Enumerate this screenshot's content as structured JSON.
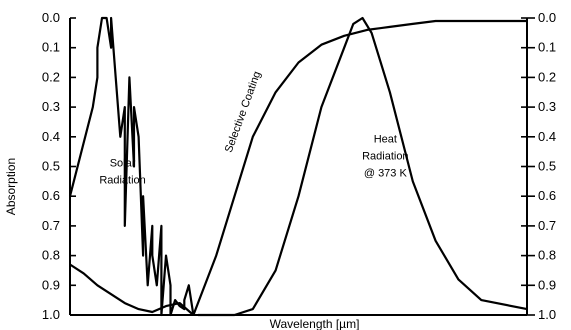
{
  "chart_data": {
    "type": "line",
    "title": "",
    "xlabel": "Wavelength [µm]",
    "ylabel": "Absorption",
    "ylim": [
      1.0,
      0.0
    ],
    "y_inverted": true,
    "y_ticks": [
      "0.0",
      "0.1",
      "0.2",
      "0.3",
      "0.4",
      "0.5",
      "0.6",
      "0.7",
      "0.8",
      "0.9",
      "1.0"
    ],
    "y_ticks_right": [
      "0.0",
      "0.1",
      "0.2",
      "0.3",
      "0.4",
      "0.5",
      "0.6",
      "0.7",
      "0.8",
      "0.9",
      "1.0"
    ],
    "xlim": [
      0,
      1
    ],
    "x_tick_labels_shown": false,
    "grid": false,
    "line_color": "#000000",
    "annotations": {
      "solar": [
        "Solar",
        "Radiation"
      ],
      "coating": "Selective Coating",
      "heat": [
        "Heat",
        "Radiation",
        "@ 373 K"
      ]
    },
    "series": [
      {
        "x": [
          0.0,
          0.05,
          0.06,
          0.06,
          0.07,
          0.08,
          0.09,
          0.09,
          0.1,
          0.11,
          0.12,
          0.12,
          0.13,
          0.14,
          0.14,
          0.15,
          0.16,
          0.16,
          0.17,
          0.18,
          0.18,
          0.19,
          0.2,
          0.2,
          0.21,
          0.22,
          0.22,
          0.23,
          0.24,
          0.25,
          0.25,
          0.26,
          0.27
        ],
        "y": [
          0.6,
          0.3,
          0.2,
          0.1,
          0.0,
          0.0,
          0.1,
          0.0,
          0.2,
          0.4,
          0.3,
          0.7,
          0.2,
          0.5,
          0.3,
          0.4,
          0.8,
          0.6,
          0.9,
          0.7,
          0.8,
          0.9,
          0.7,
          1.0,
          0.8,
          0.9,
          1.0,
          0.95,
          0.97,
          0.98,
          0.95,
          0.9,
          1.0
        ]
      },
      {
        "x": [
          0.0,
          0.03,
          0.06,
          0.09,
          0.12,
          0.15,
          0.18,
          0.21,
          0.24,
          0.27
        ],
        "y": [
          0.83,
          0.86,
          0.9,
          0.93,
          0.96,
          0.98,
          0.99,
          0.97,
          0.96,
          1.0
        ]
      },
      {
        "x": [
          0.27,
          0.32,
          0.36,
          0.4,
          0.45,
          0.5,
          0.55,
          0.6,
          0.65,
          0.7,
          0.75,
          0.8,
          0.9,
          1.0
        ],
        "y": [
          1.0,
          0.8,
          0.6,
          0.4,
          0.25,
          0.15,
          0.09,
          0.06,
          0.04,
          0.03,
          0.02,
          0.01,
          0.01,
          0.01
        ]
      },
      {
        "x": [
          0.28,
          0.32,
          0.36,
          0.4,
          0.45,
          0.5,
          0.55,
          0.6,
          0.62,
          0.64,
          0.66,
          0.7,
          0.75,
          0.8,
          0.85,
          0.9,
          1.0
        ],
        "y": [
          1.0,
          1.0,
          1.0,
          0.98,
          0.85,
          0.6,
          0.3,
          0.1,
          0.02,
          0.0,
          0.05,
          0.25,
          0.55,
          0.75,
          0.88,
          0.95,
          0.98
        ]
      }
    ]
  }
}
